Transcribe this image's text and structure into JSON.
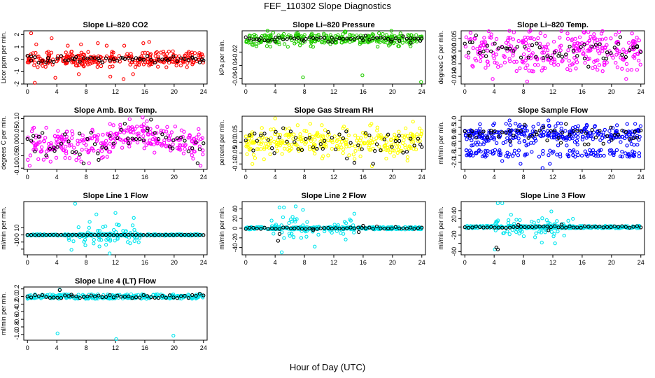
{
  "figure": {
    "title": "FEF_110302  Slope Diagnostics",
    "xlabel": "Hour of Day (UTC)"
  },
  "colors": {
    "red": "#ff0000",
    "green": "#22cc00",
    "magenta": "#ff00ff",
    "yellow": "#ffff00",
    "blue": "#0000ff",
    "cyan": "#00e5ee",
    "black": "#000000"
  },
  "chart_data": [
    {
      "type": "scatter",
      "title": "Slope Li–820 CO2",
      "ylabel": "Licor ppm per min.",
      "xlim": [
        -0.5,
        24.5
      ],
      "xticks": [
        0,
        4,
        8,
        12,
        16,
        20,
        24
      ],
      "ylim": [
        -2.0,
        2.3
      ],
      "yticks": [
        -2,
        -1,
        0,
        1,
        2
      ],
      "ytick_labels": [
        "-2",
        "-1",
        "0",
        "1",
        "2"
      ],
      "color": "red",
      "grid": false,
      "points": [
        [
          0.5,
          2.1
        ],
        [
          1.2,
          1.2
        ],
        [
          3.3,
          1.7
        ],
        [
          5.5,
          1.1
        ],
        [
          7.3,
          1.2
        ],
        [
          9.6,
          1.3
        ],
        [
          10.8,
          1.1
        ],
        [
          13.2,
          1.1
        ],
        [
          15.8,
          1.3
        ],
        [
          16.6,
          1.4
        ],
        [
          1.0,
          -1.9
        ],
        [
          3.8,
          -1.5
        ],
        [
          7.0,
          -1.2
        ],
        [
          13.1,
          -1.6
        ],
        [
          14.4,
          -1.2
        ],
        [
          11.3,
          -1.4
        ]
      ],
      "bands": [
        {
          "w": 0.45,
          "amp": 0.28
        },
        {
          "w": 0.25,
          "amp": 0.65
        }
      ],
      "black_points": [
        [
          0.5,
          -0.1
        ],
        [
          2.8,
          0.1
        ],
        [
          6.4,
          0.0
        ],
        [
          9.8,
          -0.1
        ],
        [
          13.0,
          0.1
        ],
        [
          15.3,
          0.0
        ],
        [
          19.1,
          -0.1
        ],
        [
          22.5,
          0.1
        ],
        [
          23.8,
          0.0
        ]
      ],
      "black_band": {
        "w": 0.35,
        "amp": 0.12
      }
    },
    {
      "type": "scatter",
      "title": "Slope Li–820 Pressure",
      "ylabel": "kPa per min.",
      "xlim": [
        -0.5,
        24.5
      ],
      "xticks": [
        0,
        4,
        8,
        12,
        16,
        20,
        24
      ],
      "ylim": [
        -0.068,
        0.012
      ],
      "yticks": [
        -0.06,
        -0.04,
        -0.02
      ],
      "ytick_labels": [
        "-0.06",
        "-0.04",
        "-0.02"
      ],
      "color": "green",
      "grid": false,
      "points": [
        [
          7.8,
          -0.058
        ],
        [
          15.9,
          -0.055
        ],
        [
          23.9,
          -0.065
        ]
      ],
      "bands": [
        {
          "w": 0.75,
          "amp": 0.006
        },
        {
          "w": 0.25,
          "amp": 0.013
        }
      ],
      "black_points": [
        [
          1.8,
          -0.002
        ],
        [
          4.0,
          -0.004
        ],
        [
          7.9,
          -0.003
        ],
        [
          11.8,
          -0.005
        ],
        [
          16.0,
          -0.002
        ],
        [
          19.8,
          -0.004
        ],
        [
          22.5,
          -0.006
        ],
        [
          23.8,
          -0.003
        ]
      ],
      "black_band": {
        "w": 0.7,
        "amp": 0.002
      }
    },
    {
      "type": "scatter",
      "title": "Slope Li–820 Temp.",
      "ylabel": "degrees C per min.",
      "xlim": [
        -0.5,
        24.5
      ],
      "xticks": [
        0,
        4,
        8,
        12,
        16,
        20,
        24
      ],
      "ylim": [
        -0.013,
        0.008
      ],
      "yticks": [
        -0.01,
        -0.005,
        0.0,
        0.005
      ],
      "ytick_labels": [
        "-0.010",
        "-0.005",
        "0.000",
        "0.005"
      ],
      "color": "magenta",
      "grid": false,
      "points": [
        [
          16.2,
          0.0075
        ],
        [
          8.5,
          -0.012
        ],
        [
          3.8,
          -0.011
        ],
        [
          22.0,
          -0.011
        ]
      ],
      "bands": [
        {
          "w": 0.6,
          "amp": 0.0055
        },
        {
          "w": 0.3,
          "amp": 0.008
        }
      ],
      "black_points": [
        [
          0.7,
          0.0035
        ],
        [
          2.9,
          -0.002
        ],
        [
          5.8,
          0.001
        ],
        [
          9.8,
          0.003
        ],
        [
          12.9,
          -0.001
        ],
        [
          16.3,
          0.0025
        ],
        [
          19.3,
          -0.003
        ],
        [
          21.2,
          0.0055
        ],
        [
          23.5,
          0.002
        ]
      ],
      "black_band": {
        "w": 0.7,
        "amp": 0.003
      }
    },
    {
      "type": "scatter",
      "title": "Slope Amb. Box Temp.",
      "ylabel": "degrees C per min.",
      "xlim": [
        -0.5,
        24.5
      ],
      "xticks": [
        0,
        4,
        8,
        12,
        16,
        20,
        24
      ],
      "ylim": [
        -0.105,
        0.11
      ],
      "yticks": [
        -0.1,
        -0.05,
        0.0,
        0.05,
        0.1
      ],
      "ytick_labels": [
        "-0.10",
        "-0.05",
        "0.00",
        "0.05",
        "0.10"
      ],
      "color": "magenta",
      "grid": false,
      "points": [
        [
          15.7,
          0.105
        ],
        [
          0.3,
          -0.09
        ],
        [
          23.6,
          -0.09
        ],
        [
          8.4,
          -0.08
        ]
      ],
      "bands": [
        {
          "w": 0.6,
          "amp": 0.035
        },
        {
          "w": 0.3,
          "amp": 0.07
        }
      ],
      "trend": [
        [
          0,
          0.0
        ],
        [
          8,
          -0.01
        ],
        [
          15,
          0.04
        ],
        [
          20,
          0.01
        ],
        [
          24,
          -0.01
        ]
      ],
      "black_points": [
        [
          0.8,
          0.03
        ],
        [
          3.7,
          -0.03
        ],
        [
          7.1,
          0.04
        ],
        [
          9.6,
          -0.04
        ],
        [
          13.7,
          0.02
        ],
        [
          16.4,
          0.06
        ],
        [
          19.8,
          -0.02
        ],
        [
          23.2,
          -0.08
        ]
      ],
      "black_band": {
        "w": 0.7,
        "amp": 0.03
      }
    },
    {
      "type": "scatter",
      "title": "Slope Gas Stream RH",
      "ylabel": "percent per min.",
      "xlim": [
        -0.5,
        24.5
      ],
      "xticks": [
        0,
        4,
        8,
        12,
        16,
        20,
        24
      ],
      "ylim": [
        -0.125,
        0.12
      ],
      "yticks": [
        -0.1,
        -0.05,
        0.0,
        0.05
      ],
      "ytick_labels": [
        "-0.10",
        "-0.05",
        "0.00",
        "0.05"
      ],
      "color": "yellow",
      "grid": false,
      "points": [
        [
          4.0,
          0.11
        ],
        [
          17.2,
          -0.11
        ],
        [
          0.9,
          -0.1
        ],
        [
          22.8,
          0.095
        ]
      ],
      "bands": [
        {
          "w": 0.7,
          "amp": 0.04
        },
        {
          "w": 0.3,
          "amp": 0.085
        }
      ],
      "black_points": [
        [
          1.2,
          0.04
        ],
        [
          3.9,
          -0.05
        ],
        [
          6.8,
          0.02
        ],
        [
          10.5,
          -0.03
        ],
        [
          13.7,
          0.05
        ],
        [
          17.6,
          -0.04
        ],
        [
          20.9,
          0.03
        ],
        [
          23.8,
          -0.01
        ]
      ],
      "black_band": {
        "w": 0.6,
        "amp": 0.04
      }
    },
    {
      "type": "scatter",
      "title": "Slope Sample Flow",
      "ylabel": "ml/min per min.",
      "xlim": [
        -0.5,
        24.5
      ],
      "xticks": [
        0,
        4,
        8,
        12,
        16,
        20,
        24
      ],
      "ylim": [
        -2.5,
        1.3
      ],
      "yticks": [
        -2.0,
        -1.5,
        -1.0,
        -0.5,
        0.0,
        0.5,
        1.0
      ],
      "ytick_labels": [
        "-2.0",
        "-1.5",
        "-1.0",
        "-0.5",
        "0.0",
        "0.5",
        "1.0"
      ],
      "color": "blue",
      "grid": false,
      "points": [
        [
          6.1,
          1.0
        ],
        [
          11.4,
          1.0
        ],
        [
          12.7,
          0.8
        ],
        [
          8.3,
          0.6
        ],
        [
          5.1,
          -1.9
        ],
        [
          10.6,
          -2.4
        ],
        [
          11.6,
          -2.1
        ],
        [
          8.2,
          -1.5
        ],
        [
          13.0,
          -1.4
        ],
        [
          7.6,
          -2.1
        ]
      ],
      "bands": [
        {
          "w": 0.55,
          "amp": 0.3
        },
        {
          "w": 0.25,
          "amp": 0.8
        }
      ],
      "lower_band": {
        "y": -1.35,
        "amp": 0.25,
        "from": 0,
        "to": 24
      },
      "black_points": [
        [
          0.7,
          -0.1
        ],
        [
          3.6,
          0.1
        ],
        [
          6.2,
          -0.5
        ],
        [
          9.8,
          0.0
        ],
        [
          13.1,
          -0.6
        ],
        [
          16.5,
          0.1
        ],
        [
          20.0,
          -0.4
        ],
        [
          23.2,
          0.2
        ]
      ],
      "black_band": {
        "w": 0.6,
        "amp": 0.3
      }
    },
    {
      "type": "scatter",
      "title": "Slope Line 1 Flow",
      "ylabel": "ml/min per min.",
      "xlim": [
        -0.5,
        24.5
      ],
      "xticks": [
        0,
        4,
        8,
        12,
        16,
        20,
        24
      ],
      "ylim": [
        -28,
        47
      ],
      "yticks": [
        -20,
        -10,
        0,
        10
      ],
      "ytick_labels": [
        "",
        "-10",
        "0",
        "10"
      ],
      "color": "cyan",
      "grid": false,
      "points": [
        [
          6.5,
          44
        ],
        [
          9.4,
          29
        ],
        [
          12.0,
          31
        ],
        [
          14.5,
          24
        ],
        [
          11.2,
          -26
        ],
        [
          6.0,
          -21
        ]
      ],
      "bands": [
        {
          "w": 0.85,
          "amp": 1.0
        }
      ],
      "burst": {
        "from": 5.5,
        "to": 15.5,
        "amp": 20,
        "n": 75
      },
      "black_band": {
        "w": 0.95,
        "amp": 0.3
      }
    },
    {
      "type": "scatter",
      "title": "Slope Line 2 Flow",
      "ylabel": "ml/min per min.",
      "xlim": [
        -0.5,
        24.5
      ],
      "xticks": [
        0,
        4,
        8,
        12,
        16,
        20,
        24
      ],
      "ylim": [
        -55,
        55
      ],
      "yticks": [
        -40,
        -20,
        0,
        20,
        40
      ],
      "ytick_labels": [
        "-40",
        "-20",
        "0",
        "20",
        "40"
      ],
      "color": "cyan",
      "grid": false,
      "points": [
        [
          4.6,
          43
        ],
        [
          5.2,
          43
        ],
        [
          6.8,
          45
        ],
        [
          7.8,
          38
        ],
        [
          14.8,
          30
        ],
        [
          4.9,
          -50
        ],
        [
          9.4,
          -38
        ]
      ],
      "bands": [
        {
          "w": 0.85,
          "amp": 2.5
        }
      ],
      "burst": {
        "from": 3.5,
        "to": 15,
        "amp": 28,
        "n": 60
      },
      "black_points": [
        [
          4.4,
          -26
        ],
        [
          4.6,
          -12
        ],
        [
          15.4,
          -8
        ],
        [
          16.0,
          5
        ],
        [
          9.2,
          -4
        ]
      ],
      "black_band": {
        "w": 0.9,
        "amp": 1.5
      }
    },
    {
      "type": "scatter",
      "title": "Slope Line 3 Flow",
      "ylabel": "ml/min per min.",
      "xlim": [
        -0.5,
        24.5
      ],
      "xticks": [
        0,
        4,
        8,
        12,
        16,
        20,
        24
      ],
      "ylim": [
        -68,
        62
      ],
      "yticks": [
        -60,
        -40,
        -20,
        0,
        20,
        40
      ],
      "ytick_labels": [
        "-60",
        "",
        "-20",
        "",
        "20",
        "40"
      ],
      "color": "cyan",
      "grid": false,
      "points": [
        [
          4.5,
          58
        ],
        [
          5.1,
          58
        ],
        [
          6.3,
          30
        ],
        [
          11.8,
          38
        ],
        [
          4.1,
          -55
        ],
        [
          10.5,
          -38
        ],
        [
          12.3,
          -40
        ]
      ],
      "bands": [
        {
          "w": 0.85,
          "amp": 3
        }
      ],
      "burst": {
        "from": 4,
        "to": 15,
        "amp": 32,
        "n": 60
      },
      "black_points": [
        [
          4.3,
          -50
        ],
        [
          4.5,
          -55
        ],
        [
          7.3,
          5
        ],
        [
          11.4,
          -8
        ],
        [
          13.2,
          6
        ]
      ],
      "black_band": {
        "w": 0.9,
        "amp": 2
      }
    },
    {
      "type": "scatter",
      "title": "Slope Line 4 (LT) Flow",
      "ylabel": "ml/min per min.",
      "xlim": [
        -0.5,
        24.5
      ],
      "xticks": [
        0,
        4,
        8,
        12,
        16,
        20,
        24
      ],
      "ylim": [
        -1.15,
        0.25
      ],
      "yticks": [
        -1.0,
        -0.8,
        -0.6,
        -0.4,
        -0.2,
        0.0,
        0.2
      ],
      "ytick_labels": [
        "-1.0",
        "-0.8",
        "-0.6",
        "-0.4",
        "-0.2",
        "0.0",
        "0.2"
      ],
      "color": "cyan",
      "grid": false,
      "points": [
        [
          4.1,
          -0.97
        ],
        [
          12.1,
          -1.12
        ],
        [
          19.9,
          -1.03
        ],
        [
          4.4,
          0.18
        ]
      ],
      "bands": [
        {
          "w": 0.9,
          "amp": 0.06
        }
      ],
      "black_points": [
        [
          4.4,
          0.17
        ],
        [
          6.0,
          0.05
        ]
      ],
      "black_band": {
        "w": 0.95,
        "amp": 0.04
      }
    }
  ]
}
